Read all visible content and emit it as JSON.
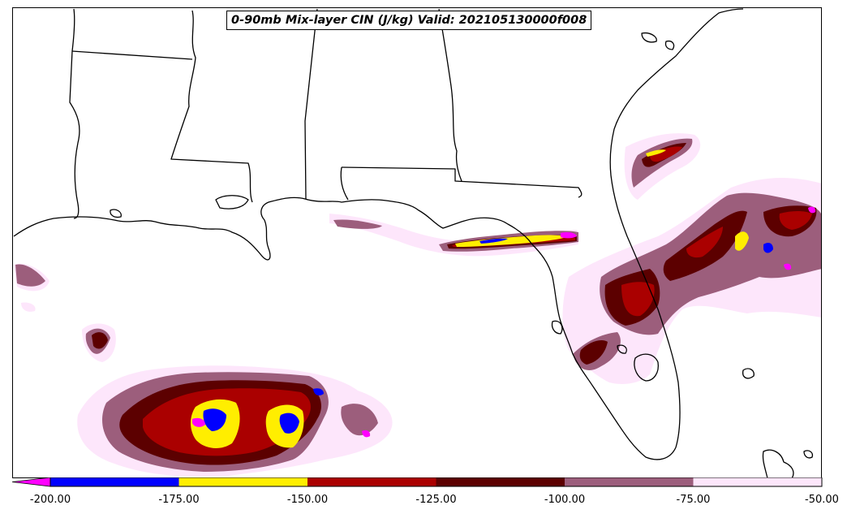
{
  "title": "0-90mb Mix-layer CIN (J/kg) Valid: 202105130000f008",
  "colorbar": {
    "ticks": [
      "-200.00",
      "-175.00",
      "-150.00",
      "-125.00",
      "-100.00",
      "-75.00",
      "-50.00"
    ],
    "extend": "min",
    "bins": [
      {
        "min": -200,
        "max": -175,
        "color": "#0000ff"
      },
      {
        "min": -175,
        "max": -150,
        "color": "#ffee00"
      },
      {
        "min": -150,
        "max": -125,
        "color": "#aa0000"
      },
      {
        "min": -125,
        "max": -100,
        "color": "#5c0000"
      },
      {
        "min": -100,
        "max": -75,
        "color": "#9c5e7c"
      },
      {
        "min": -75,
        "max": -50,
        "color": "#fde6fb"
      }
    ],
    "under_color": "#ff00ff"
  },
  "colors": {
    "light": "#fde6fb",
    "mauve": "#9c5e7c",
    "dark": "#5c0000",
    "red": "#aa0000",
    "yellow": "#ffee00",
    "blue": "#0000ff",
    "magenta": "#ff00ff",
    "outline": "#000000",
    "background": "#ffffff"
  }
}
